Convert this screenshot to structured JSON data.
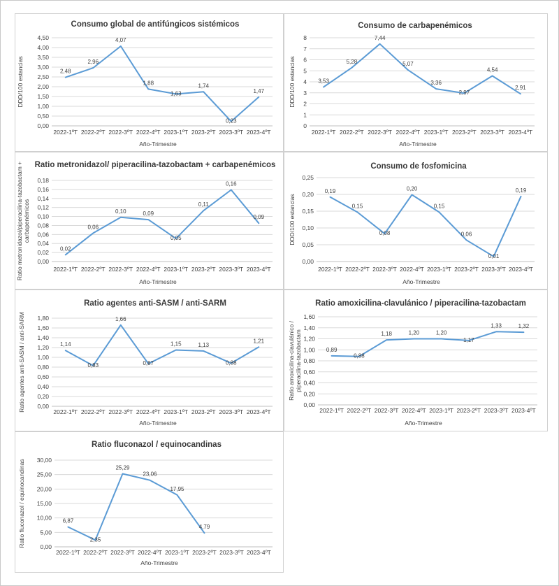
{
  "figure": {
    "line_color": "#5b9bd5",
    "x_axis_label": "Año-Trimestre"
  },
  "chart_data": [
    {
      "type": "line",
      "title": "Consumo global de antifúngicos sistémicos",
      "categories": [
        "2022-1ºT",
        "2022-2ºT",
        "2022-3ºT",
        "2022-4ºT",
        "2023-1ºT",
        "2023-2ºT",
        "2023-3ºT",
        "2023-4ºT"
      ],
      "values": [
        2.48,
        2.96,
        4.07,
        1.88,
        1.63,
        1.74,
        0.23,
        1.47
      ],
      "data_labels": [
        "2,48",
        "2,96",
        "4,07",
        "1,88",
        "1,63",
        "1,74",
        "0,23",
        "1,47"
      ],
      "ylabel": "DDD/100 estancias",
      "xlabel": "Año-Trimestre",
      "ylim": [
        0,
        4.5
      ],
      "yticks": [
        "0,00",
        "0,50",
        "1,00",
        "1,50",
        "2,00",
        "2,50",
        "3,00",
        "3,50",
        "4,00",
        "4,50"
      ],
      "grid": true
    },
    {
      "type": "line",
      "title": "Consumo de carbapenémicos",
      "categories": [
        "2022-1ºT",
        "2022-2ºT",
        "2022-3ºT",
        "2022-4ºT",
        "2023-1ºT",
        "2023-2ºT",
        "2023-3ºT",
        "2023-4ºT"
      ],
      "values": [
        3.53,
        5.28,
        7.44,
        5.07,
        3.36,
        2.97,
        4.54,
        2.91
      ],
      "data_labels": [
        "3,53",
        "5,28",
        "7,44",
        "5,07",
        "3,36",
        "2,97",
        "4,54",
        "2,91"
      ],
      "ylabel": "DDD/100 estancias",
      "xlabel": "Año-Trimestre",
      "ylim": [
        0,
        8
      ],
      "yticks": [
        "0",
        "1",
        "2",
        "3",
        "4",
        "5",
        "6",
        "7",
        "8"
      ],
      "grid": true
    },
    {
      "type": "line",
      "title": "Ratio metronidazol/ piperacilina-tazobactam + carbapenémicos",
      "categories": [
        "2022-1ºT",
        "2022-2ºT",
        "2022-3ºT",
        "2022-4ºT",
        "2023-1ºT",
        "2023-2ºT",
        "2023-3ºT",
        "2023-4ºT"
      ],
      "values": [
        0.015,
        0.063,
        0.098,
        0.093,
        0.051,
        0.113,
        0.159,
        0.085
      ],
      "data_labels": [
        "0,02",
        "0,06",
        "0,10",
        "0,09",
        "0,05",
        "0,11",
        "0,16",
        "0,09"
      ],
      "ylabel": "Ratio metronidazol/piperacilina-tazobactam + carbapenémicos",
      "xlabel": "Año-Trimestre",
      "ylim": [
        0,
        0.18
      ],
      "yticks": [
        "0,00",
        "0,02",
        "0,04",
        "0,06",
        "0,08",
        "0,10",
        "0,12",
        "0,14",
        "0,16",
        "0,18"
      ],
      "grid": true
    },
    {
      "type": "line",
      "title": "Consumo de fosfomicina",
      "categories": [
        "2022-1ºT",
        "2022-2ºT",
        "2022-3ºT",
        "2022-4ºT",
        "2023-1ºT",
        "2023-2ºT",
        "2023-3ºT",
        "2023-4ºT"
      ],
      "values": [
        0.192,
        0.147,
        0.083,
        0.199,
        0.147,
        0.064,
        0.015,
        0.194
      ],
      "data_labels": [
        "0,19",
        "0,15",
        "0,08",
        "0,20",
        "0,15",
        "0,06",
        "0,01",
        "0,19"
      ],
      "ylabel": "DDD/100 estancias",
      "xlabel": "Año-Trimestre",
      "ylim": [
        0,
        0.25
      ],
      "yticks": [
        "0,00",
        "0,05",
        "0,10",
        "0,15",
        "0,20",
        "0,25"
      ],
      "grid": true
    },
    {
      "type": "line",
      "title": "Ratio agentes anti-SASM / anti-SARM",
      "categories": [
        "2022-1ºT",
        "2022-2ºT",
        "2022-3ºT",
        "2022-4ºT",
        "2023-1ºT",
        "2023-2ºT",
        "2023-3ºT",
        "2023-4ºT"
      ],
      "values": [
        1.14,
        0.83,
        1.66,
        0.87,
        1.15,
        1.13,
        0.88,
        1.21
      ],
      "data_labels": [
        "1,14",
        "0,83",
        "1,66",
        "0,87",
        "1,15",
        "1,13",
        "0,88",
        "1,21"
      ],
      "ylabel": "Ratio agentes anti-SASM / anti-SARM",
      "xlabel": "Año-Trimestre",
      "ylim": [
        0,
        1.8
      ],
      "yticks": [
        "0,00",
        "0,20",
        "0,40",
        "0,60",
        "0,80",
        "1,00",
        "1,20",
        "1,40",
        "1,60",
        "1,80"
      ],
      "grid": true
    },
    {
      "type": "line",
      "title": "Ratio amoxicilina-clavulánico / piperacilina-tazobactam",
      "categories": [
        "2022-1ºT",
        "2022-2ºT",
        "2022-3ºT",
        "2022-4ºT",
        "2023-1ºT",
        "2023-2ºT",
        "2023-3ºT",
        "2023-4ºT"
      ],
      "values": [
        0.89,
        0.88,
        1.18,
        1.2,
        1.2,
        1.17,
        1.33,
        1.32
      ],
      "data_labels": [
        "0,89",
        "0,88",
        "1,18",
        "1,20",
        "1,20",
        "1,17",
        "1,33",
        "1,32"
      ],
      "ylabel": "Ratio amoxicilina-clavulánico / piperacilina-tazobactam",
      "xlabel": "Año-Trimestre",
      "ylim": [
        0,
        1.6
      ],
      "yticks": [
        "0,00",
        "0,20",
        "0,40",
        "0,60",
        "0,80",
        "1,00",
        "1,20",
        "1,40",
        "1,60"
      ],
      "grid": true
    },
    {
      "type": "line",
      "title": "Ratio fluconazol / equinocandinas",
      "categories": [
        "2022-1ºT",
        "2022-2ºT",
        "2022-3ºT",
        "2022-4ºT",
        "2023-1ºT",
        "2023-2ºT",
        "2023-3ºT",
        "2023-4ºT"
      ],
      "values": [
        6.87,
        2.35,
        25.29,
        23.06,
        17.95,
        4.79,
        null,
        null
      ],
      "data_labels": [
        "6,87",
        "2,35",
        "25,29",
        "23,06",
        "17,95",
        "4,79",
        "",
        ""
      ],
      "ylabel": "Ratio fluconazol / equinocandinas",
      "xlabel": "Año-Trimestre",
      "ylim": [
        0,
        30
      ],
      "yticks": [
        "0,00",
        "5,00",
        "10,00",
        "15,00",
        "20,00",
        "25,00",
        "30,00"
      ],
      "grid": true
    }
  ]
}
